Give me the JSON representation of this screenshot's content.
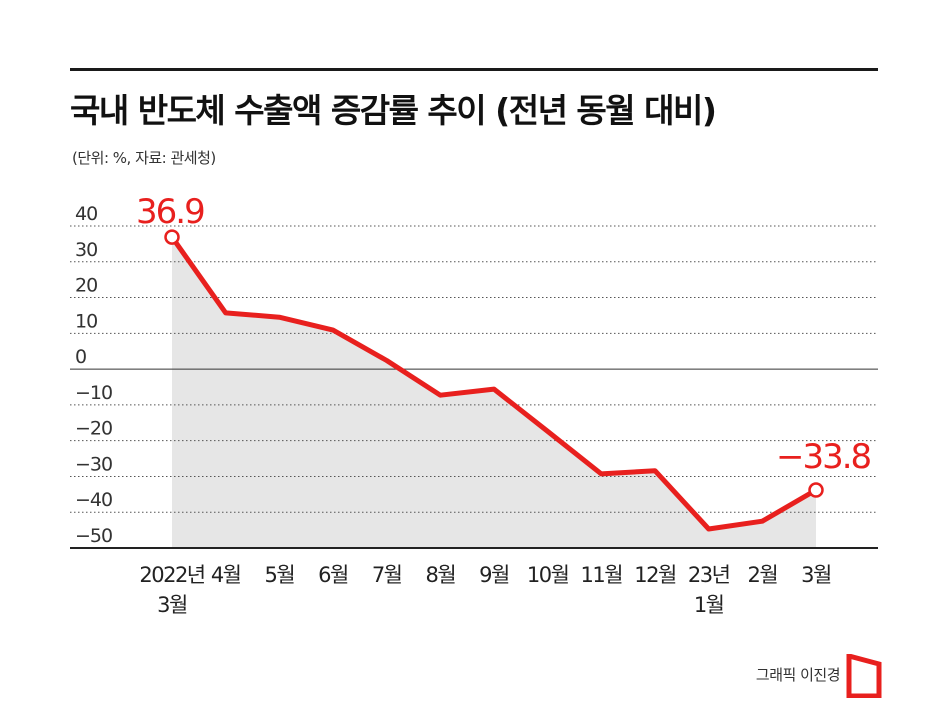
{
  "header": {
    "title": "국내 반도체 수출액 증감률 추이 (전년 동월 대비)",
    "subtitle": "(단위: %, 자료: 관세청)"
  },
  "credit": "그래픽 이진경",
  "colors": {
    "line": "#e8201e",
    "area": "#e6e6e6",
    "grid": "#555555",
    "axis": "#222222",
    "logo": "#e8201e"
  },
  "chart_data": {
    "type": "area",
    "title": "국내 반도체 수출액 증감률 추이 (전년 동월 대비)",
    "ylabel": "",
    "xlabel": "",
    "ylim": [
      -50,
      40
    ],
    "yticks": [
      40,
      30,
      20,
      10,
      0,
      -10,
      -20,
      -30,
      -40,
      -50
    ],
    "ytick_labels": [
      "40",
      "30",
      "20",
      "10",
      "0",
      "−10",
      "−20",
      "−30",
      "−40",
      "−50"
    ],
    "grid": true,
    "categories": [
      [
        "2022년",
        "3월"
      ],
      [
        "4월"
      ],
      [
        "5월"
      ],
      [
        "6월"
      ],
      [
        "7월"
      ],
      [
        "8월"
      ],
      [
        "9월"
      ],
      [
        "10월"
      ],
      [
        "11월"
      ],
      [
        "12월"
      ],
      [
        "23년",
        "1월"
      ],
      [
        "2월"
      ],
      [
        "3월"
      ]
    ],
    "values": [
      36.9,
      15.7,
      14.5,
      10.9,
      2.4,
      -7.3,
      -5.6,
      -17.4,
      -29.3,
      -28.4,
      -44.7,
      -42.5,
      -33.8
    ],
    "labels": [
      {
        "index": 0,
        "text": "36.9"
      },
      {
        "index": 12,
        "text": "−33.8"
      }
    ]
  }
}
